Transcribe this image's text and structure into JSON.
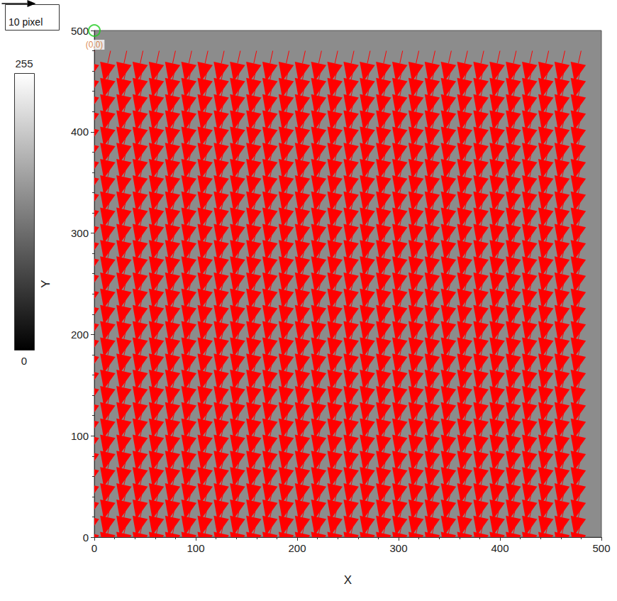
{
  "chart_data": {
    "type": "vector_field",
    "xlabel": "X",
    "ylabel": "Y",
    "xlim": [
      0,
      500
    ],
    "ylim": [
      0,
      500
    ],
    "xticks": [
      0,
      100,
      200,
      300,
      400,
      500
    ],
    "yticks": [
      0,
      100,
      200,
      300,
      400,
      500
    ],
    "color": "#ff0000",
    "x": [
      0,
      16,
      32,
      48,
      64,
      80,
      96,
      112,
      128,
      144,
      160,
      176,
      192,
      208,
      224,
      240,
      256,
      272,
      288,
      304,
      320,
      336,
      352,
      368,
      384,
      400,
      416,
      432,
      448,
      464,
      480
    ],
    "y": [
      0,
      16,
      32,
      48,
      64,
      80,
      96,
      112,
      128,
      144,
      160,
      176,
      192,
      208,
      224,
      240,
      256,
      272,
      288,
      304,
      320,
      336,
      352,
      368,
      384,
      400,
      416,
      432,
      448,
      464,
      480
    ],
    "u": -2,
    "v": -9,
    "reference_vector": {
      "length": 10,
      "label": "10 pixel"
    },
    "colorbar": {
      "range": [
        0,
        255
      ],
      "ticks": [
        0,
        255
      ]
    },
    "annotations": [
      {
        "text": "(0,0)",
        "x": 0,
        "y": 500
      }
    ]
  }
}
